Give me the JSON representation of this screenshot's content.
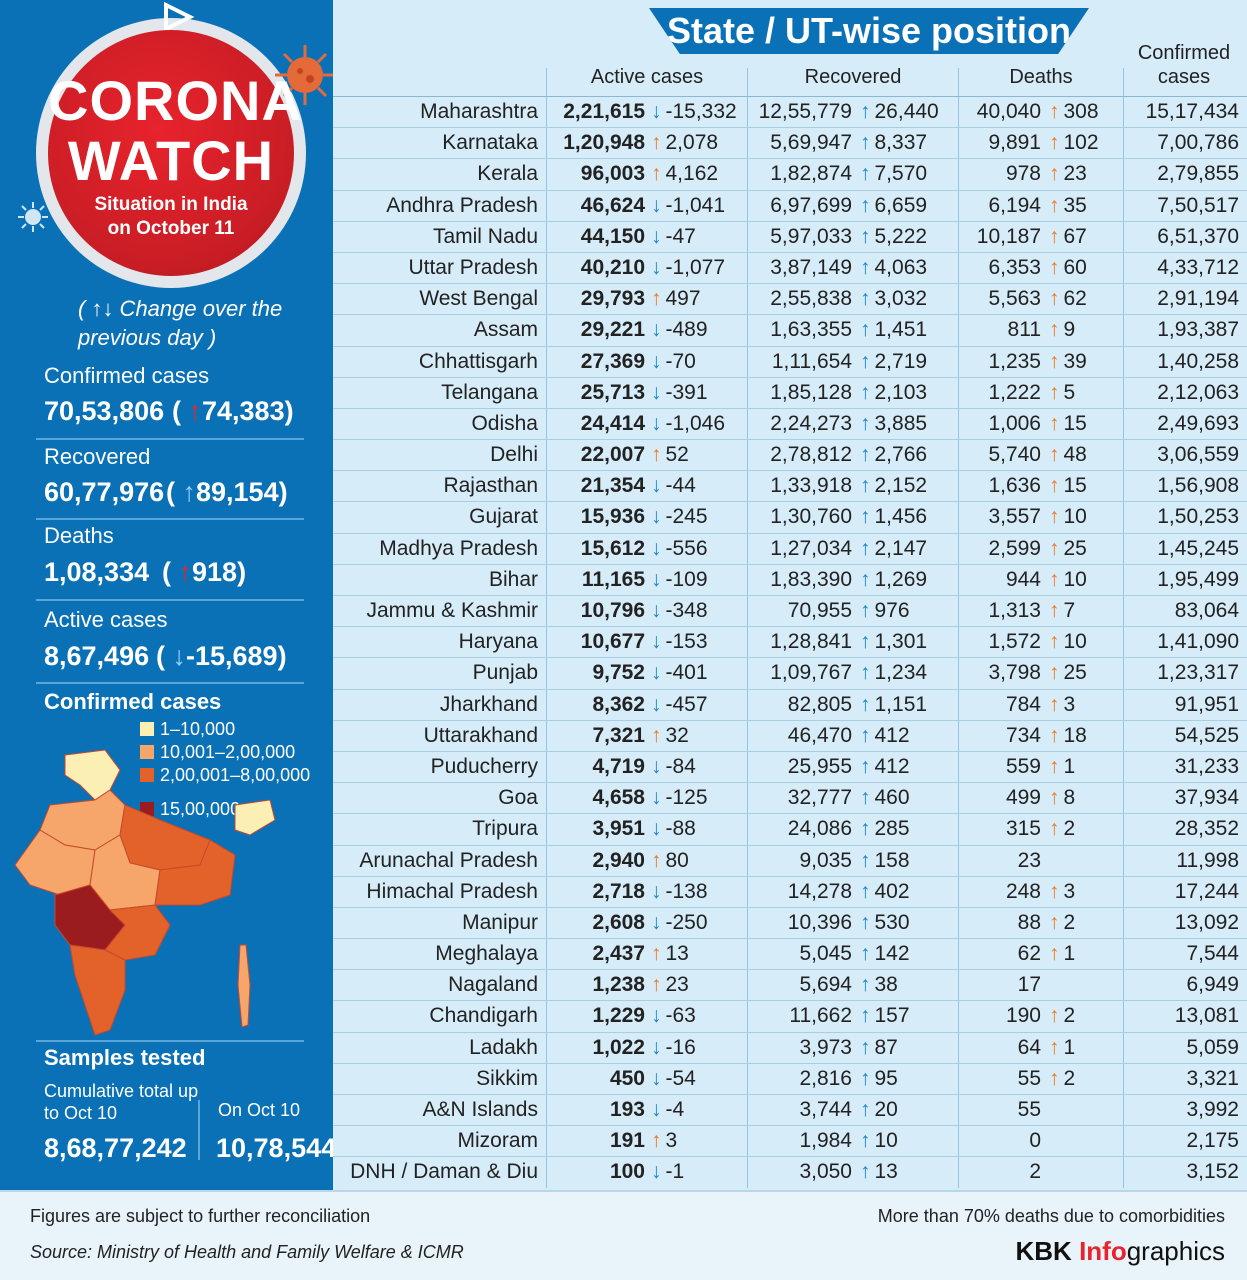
{
  "badge": {
    "title_line1": "CORONA",
    "title_line2": "WATCH",
    "subtitle_line1": "Situation in India",
    "subtitle_line2": "on October 11"
  },
  "change_note": "( ↑↓ Change over the previous day )",
  "summary": {
    "confirmed": {
      "label": "Confirmed cases",
      "value": "70,53,806",
      "change": "74,383"
    },
    "recovered": {
      "label": "Recovered",
      "value": "60,77,976",
      "change": "89,154"
    },
    "deaths": {
      "label": "Deaths",
      "value": "1,08,334",
      "change": "918"
    },
    "active": {
      "label": "Active cases",
      "value": "8,67,496",
      "change": "-15,689"
    }
  },
  "map": {
    "title": "Confirmed cases",
    "legend": [
      {
        "label": "1–10,000",
        "color": "#fcefb4"
      },
      {
        "label": "10,001–2,00,000",
        "color": "#f6a66a"
      },
      {
        "label": "2,00,001–8,00,000",
        "color": "#e2622a"
      },
      {
        "label": "15,00,000+",
        "color": "#9b1c1f"
      }
    ]
  },
  "samples": {
    "title": "Samples tested",
    "cumulative_label": "Cumulative total up to Oct 10",
    "cumulative_value": "8,68,77,242",
    "day_label": "On Oct 10",
    "day_value": "10,78,544"
  },
  "table": {
    "banner": "State / UT-wise position",
    "headers": {
      "active": "Active cases",
      "recovered": "Recovered",
      "deaths": "Deaths",
      "confirmed_line1": "Confirmed",
      "confirmed_line2": "cases"
    },
    "rows": [
      {
        "state": "Maharashtra",
        "active": "2,21,615",
        "active_dir": "down",
        "active_chg": "-15,332",
        "recovered": "12,55,779",
        "rec_chg": "26,440",
        "deaths": "40,040",
        "death_chg": "308",
        "confirmed": "15,17,434"
      },
      {
        "state": "Karnataka",
        "active": "1,20,948",
        "active_dir": "up",
        "active_chg": "2,078",
        "recovered": "5,69,947",
        "rec_chg": "8,337",
        "deaths": "9,891",
        "death_chg": "102",
        "confirmed": "7,00,786"
      },
      {
        "state": "Kerala",
        "active": "96,003",
        "active_dir": "up",
        "active_chg": "4,162",
        "recovered": "1,82,874",
        "rec_chg": "7,570",
        "deaths": "978",
        "death_chg": "23",
        "confirmed": "2,79,855"
      },
      {
        "state": "Andhra Pradesh",
        "active": "46,624",
        "active_dir": "down",
        "active_chg": "-1,041",
        "recovered": "6,97,699",
        "rec_chg": "6,659",
        "deaths": "6,194",
        "death_chg": "35",
        "confirmed": "7,50,517"
      },
      {
        "state": "Tamil Nadu",
        "active": "44,150",
        "active_dir": "down",
        "active_chg": "-47",
        "recovered": "5,97,033",
        "rec_chg": "5,222",
        "deaths": "10,187",
        "death_chg": "67",
        "confirmed": "6,51,370"
      },
      {
        "state": "Uttar Pradesh",
        "active": "40,210",
        "active_dir": "down",
        "active_chg": "-1,077",
        "recovered": "3,87,149",
        "rec_chg": "4,063",
        "deaths": "6,353",
        "death_chg": "60",
        "confirmed": "4,33,712"
      },
      {
        "state": "West Bengal",
        "active": "29,793",
        "active_dir": "up",
        "active_chg": "497",
        "recovered": "2,55,838",
        "rec_chg": "3,032",
        "deaths": "5,563",
        "death_chg": "62",
        "confirmed": "2,91,194"
      },
      {
        "state": "Assam",
        "active": "29,221",
        "active_dir": "down",
        "active_chg": "-489",
        "recovered": "1,63,355",
        "rec_chg": "1,451",
        "deaths": "811",
        "death_chg": "9",
        "confirmed": "1,93,387"
      },
      {
        "state": "Chhattisgarh",
        "active": "27,369",
        "active_dir": "down",
        "active_chg": "-70",
        "recovered": "1,11,654",
        "rec_chg": "2,719",
        "deaths": "1,235",
        "death_chg": "39",
        "confirmed": "1,40,258"
      },
      {
        "state": "Telangana",
        "active": "25,713",
        "active_dir": "down",
        "active_chg": "-391",
        "recovered": "1,85,128",
        "rec_chg": "2,103",
        "deaths": "1,222",
        "death_chg": "5",
        "confirmed": "2,12,063"
      },
      {
        "state": "Odisha",
        "active": "24,414",
        "active_dir": "down",
        "active_chg": "-1,046",
        "recovered": "2,24,273",
        "rec_chg": "3,885",
        "deaths": "1,006",
        "death_chg": "15",
        "confirmed": "2,49,693"
      },
      {
        "state": "Delhi",
        "active": "22,007",
        "active_dir": "up",
        "active_chg": "52",
        "recovered": "2,78,812",
        "rec_chg": "2,766",
        "deaths": "5,740",
        "death_chg": "48",
        "confirmed": "3,06,559"
      },
      {
        "state": "Rajasthan",
        "active": "21,354",
        "active_dir": "down",
        "active_chg": "-44",
        "recovered": "1,33,918",
        "rec_chg": "2,152",
        "deaths": "1,636",
        "death_chg": "15",
        "confirmed": "1,56,908"
      },
      {
        "state": "Gujarat",
        "active": "15,936",
        "active_dir": "down",
        "active_chg": "-245",
        "recovered": "1,30,760",
        "rec_chg": "1,456",
        "deaths": "3,557",
        "death_chg": "10",
        "confirmed": "1,50,253"
      },
      {
        "state": "Madhya Pradesh",
        "active": "15,612",
        "active_dir": "down",
        "active_chg": "-556",
        "recovered": "1,27,034",
        "rec_chg": "2,147",
        "deaths": "2,599",
        "death_chg": "25",
        "confirmed": "1,45,245"
      },
      {
        "state": "Bihar",
        "active": "11,165",
        "active_dir": "down",
        "active_chg": "-109",
        "recovered": "1,83,390",
        "rec_chg": "1,269",
        "deaths": "944",
        "death_chg": "10",
        "confirmed": "1,95,499"
      },
      {
        "state": "Jammu & Kashmir",
        "active": "10,796",
        "active_dir": "down",
        "active_chg": "-348",
        "recovered": "70,955",
        "rec_chg": "976",
        "deaths": "1,313",
        "death_chg": "7",
        "confirmed": "83,064"
      },
      {
        "state": "Haryana",
        "active": "10,677",
        "active_dir": "down",
        "active_chg": "-153",
        "recovered": "1,28,841",
        "rec_chg": "1,301",
        "deaths": "1,572",
        "death_chg": "10",
        "confirmed": "1,41,090"
      },
      {
        "state": "Punjab",
        "active": "9,752",
        "active_dir": "down",
        "active_chg": "-401",
        "recovered": "1,09,767",
        "rec_chg": "1,234",
        "deaths": "3,798",
        "death_chg": "25",
        "confirmed": "1,23,317"
      },
      {
        "state": "Jharkhand",
        "active": "8,362",
        "active_dir": "down",
        "active_chg": "-457",
        "recovered": "82,805",
        "rec_chg": "1,151",
        "deaths": "784",
        "death_chg": "3",
        "confirmed": "91,951"
      },
      {
        "state": "Uttarakhand",
        "active": "7,321",
        "active_dir": "up",
        "active_chg": "32",
        "recovered": "46,470",
        "rec_chg": "412",
        "deaths": "734",
        "death_chg": "18",
        "confirmed": "54,525"
      },
      {
        "state": "Puducherry",
        "active": "4,719",
        "active_dir": "down",
        "active_chg": "-84",
        "recovered": "25,955",
        "rec_chg": "412",
        "deaths": "559",
        "death_chg": "1",
        "confirmed": "31,233"
      },
      {
        "state": "Goa",
        "active": "4,658",
        "active_dir": "down",
        "active_chg": "-125",
        "recovered": "32,777",
        "rec_chg": "460",
        "deaths": "499",
        "death_chg": "8",
        "confirmed": "37,934"
      },
      {
        "state": "Tripura",
        "active": "3,951",
        "active_dir": "down",
        "active_chg": "-88",
        "recovered": "24,086",
        "rec_chg": "285",
        "deaths": "315",
        "death_chg": "2",
        "confirmed": "28,352"
      },
      {
        "state": "Arunachal Pradesh",
        "active": "2,940",
        "active_dir": "up",
        "active_chg": "80",
        "recovered": "9,035",
        "rec_chg": "158",
        "deaths": "23",
        "death_chg": "",
        "confirmed": "11,998"
      },
      {
        "state": "Himachal Pradesh",
        "active": "2,718",
        "active_dir": "down",
        "active_chg": "-138",
        "recovered": "14,278",
        "rec_chg": "402",
        "deaths": "248",
        "death_chg": "3",
        "confirmed": "17,244"
      },
      {
        "state": "Manipur",
        "active": "2,608",
        "active_dir": "down",
        "active_chg": "-250",
        "recovered": "10,396",
        "rec_chg": "530",
        "deaths": "88",
        "death_chg": "2",
        "confirmed": "13,092"
      },
      {
        "state": "Meghalaya",
        "active": "2,437",
        "active_dir": "up",
        "active_chg": "13",
        "recovered": "5,045",
        "rec_chg": "142",
        "deaths": "62",
        "death_chg": "1",
        "confirmed": "7,544"
      },
      {
        "state": "Nagaland",
        "active": "1,238",
        "active_dir": "up",
        "active_chg": "23",
        "recovered": "5,694",
        "rec_chg": "38",
        "deaths": "17",
        "death_chg": "",
        "confirmed": "6,949"
      },
      {
        "state": "Chandigarh",
        "active": "1,229",
        "active_dir": "down",
        "active_chg": "-63",
        "recovered": "11,662",
        "rec_chg": "157",
        "deaths": "190",
        "death_chg": "2",
        "confirmed": "13,081"
      },
      {
        "state": "Ladakh",
        "active": "1,022",
        "active_dir": "down",
        "active_chg": "-16",
        "recovered": "3,973",
        "rec_chg": "87",
        "deaths": "64",
        "death_chg": "1",
        "confirmed": "5,059"
      },
      {
        "state": "Sikkim",
        "active": "450",
        "active_dir": "down",
        "active_chg": "-54",
        "recovered": "2,816",
        "rec_chg": "95",
        "deaths": "55",
        "death_chg": "2",
        "confirmed": "3,321"
      },
      {
        "state": "A&N Islands",
        "active": "193",
        "active_dir": "down",
        "active_chg": "-4",
        "recovered": "3,744",
        "rec_chg": "20",
        "deaths": "55",
        "death_chg": "",
        "confirmed": "3,992"
      },
      {
        "state": "Mizoram",
        "active": "191",
        "active_dir": "up",
        "active_chg": "3",
        "recovered": "1,984",
        "rec_chg": "10",
        "deaths": "0",
        "death_chg": "",
        "confirmed": "2,175"
      },
      {
        "state": "DNH / Daman & Diu",
        "active": "100",
        "active_dir": "down",
        "active_chg": "-1",
        "recovered": "3,050",
        "rec_chg": "13",
        "deaths": "2",
        "death_chg": "",
        "confirmed": "3,152"
      }
    ]
  },
  "footer": {
    "note": "Figures are subject to further reconciliation",
    "source": "Source: Ministry of Health and Family Welfare & ICMR",
    "right_note": "More than 70% deaths due to comorbidities",
    "brand_part1": "KBK ",
    "brand_part2": "Info",
    "brand_part3": "graphics"
  }
}
